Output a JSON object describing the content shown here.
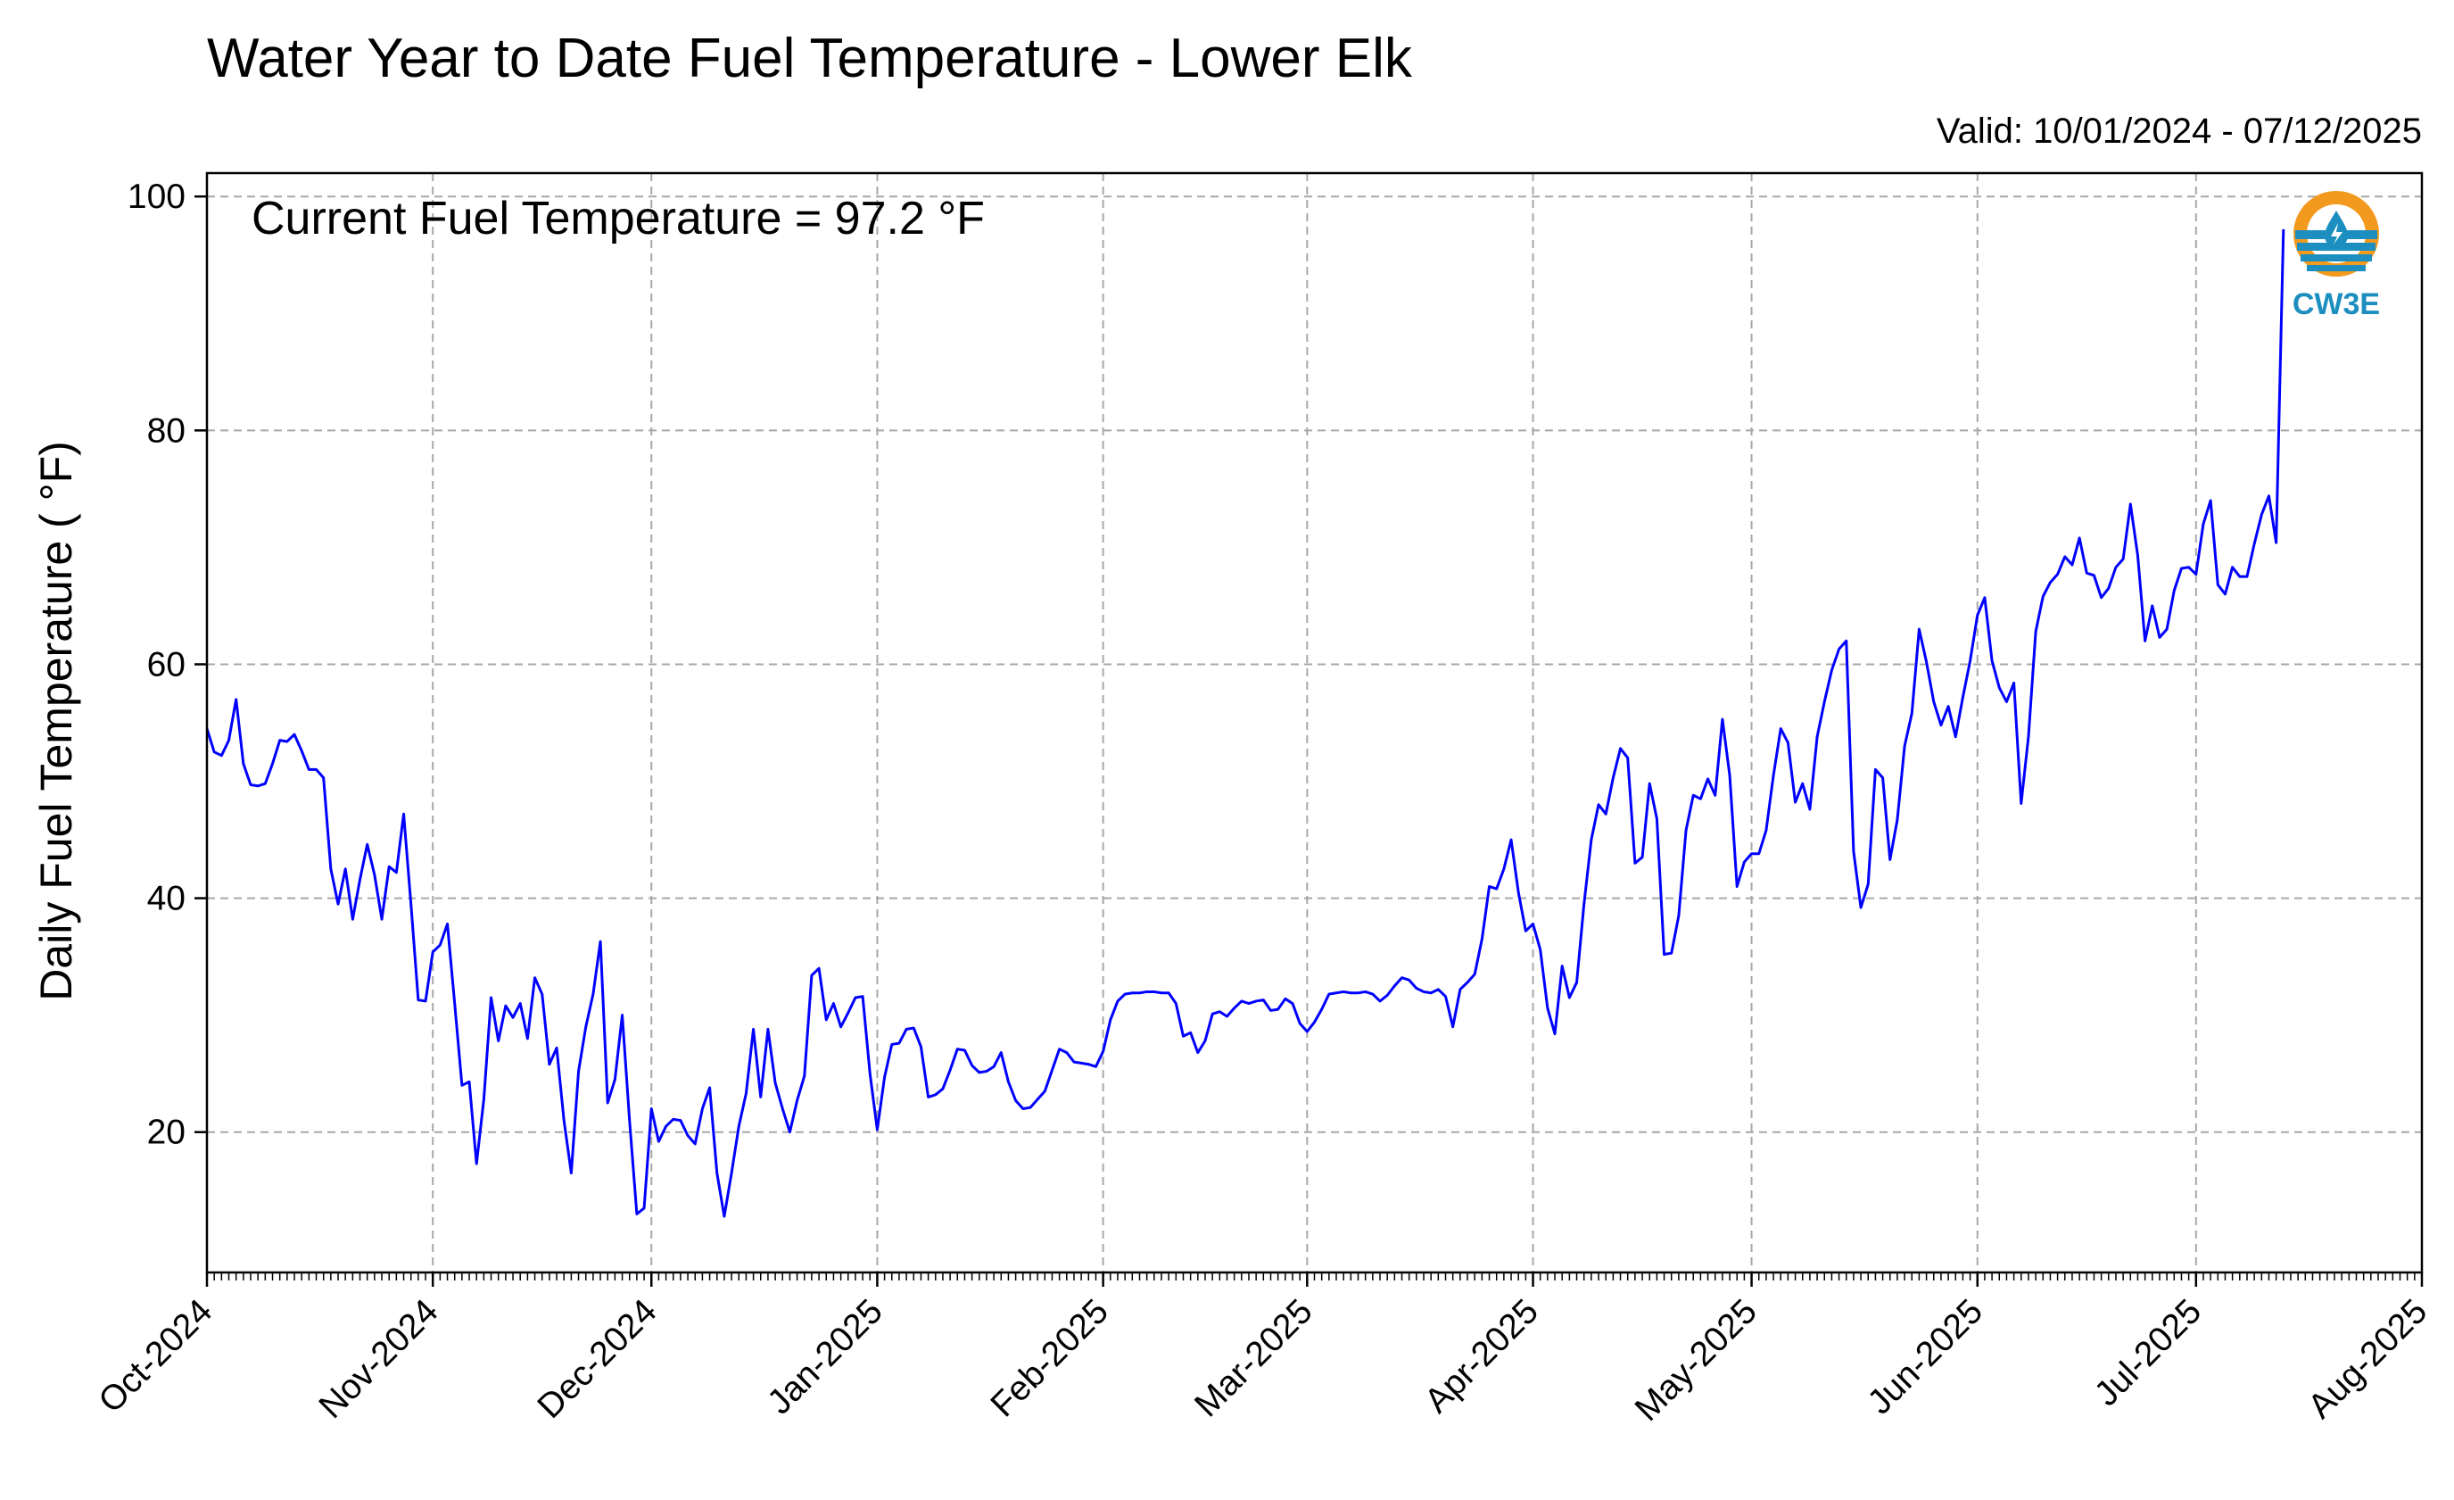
{
  "colors": {
    "series": "#0000ff",
    "grid": "#a8a8a8",
    "logo_orange": "#f39a1e",
    "logo_blue": "#1c8ec0"
  },
  "logo": {
    "text": "CW3E",
    "icon": "water-drop-logo-icon"
  },
  "chart_data": {
    "type": "line",
    "title": "Water Year to Date Fuel Temperature - Lower Elk",
    "subtitle": "Valid: 10/01/2024 - 07/12/2025",
    "ylabel": "Daily Fuel Temperature ( °F)",
    "xlabel": "",
    "annotation": "Current Fuel Temperature = 97.2 °F",
    "xlim": [
      "2024-10-01",
      "2025-08-01"
    ],
    "ylim": [
      8,
      102
    ],
    "y_ticks": [
      20,
      40,
      60,
      80,
      100
    ],
    "x_ticks": [
      {
        "date": "2024-10-01",
        "label": "Oct-2024"
      },
      {
        "date": "2024-11-01",
        "label": "Nov-2024"
      },
      {
        "date": "2024-12-01",
        "label": "Dec-2024"
      },
      {
        "date": "2025-01-01",
        "label": "Jan-2025"
      },
      {
        "date": "2025-02-01",
        "label": "Feb-2025"
      },
      {
        "date": "2025-03-01",
        "label": "Mar-2025"
      },
      {
        "date": "2025-04-01",
        "label": "Apr-2025"
      },
      {
        "date": "2025-05-01",
        "label": "May-2025"
      },
      {
        "date": "2025-06-01",
        "label": "Jun-2025"
      },
      {
        "date": "2025-07-01",
        "label": "Jul-2025"
      },
      {
        "date": "2025-08-01",
        "label": "Aug-2025"
      }
    ],
    "grid": true,
    "series": [
      {
        "start_date": "2024-10-01",
        "x_step": "1 day",
        "values": [
          54.5,
          52.5,
          52.2,
          53.5,
          57.0,
          51.5,
          49.7,
          49.6,
          49.8,
          51.5,
          53.5,
          53.4,
          54.0,
          52.6,
          51.0,
          51.0,
          50.3,
          42.5,
          39.5,
          42.5,
          38.2,
          41.6,
          44.6,
          42.0,
          38.2,
          42.7,
          42.2,
          47.2,
          39.5,
          31.3,
          31.2,
          35.4,
          36.0,
          37.8,
          31.0,
          24.0,
          24.3,
          17.3,
          22.8,
          31.5,
          27.8,
          30.8,
          29.8,
          31.0,
          28.0,
          33.2,
          31.8,
          25.8,
          27.2,
          21.0,
          16.5,
          25.2,
          29.0,
          31.8,
          36.3,
          22.5,
          24.5,
          30.0,
          21.0,
          13.0,
          13.5,
          22.0,
          19.2,
          20.5,
          21.1,
          21.0,
          19.7,
          19.0,
          22.0,
          23.8,
          16.5,
          12.8,
          16.5,
          20.5,
          23.3,
          28.8,
          23.0,
          28.8,
          24.2,
          22.0,
          20.0,
          22.7,
          24.8,
          33.4,
          34.0,
          29.6,
          31.0,
          29.0,
          30.2,
          31.5,
          31.6,
          25.0,
          20.2,
          24.7,
          27.5,
          27.6,
          28.8,
          28.9,
          27.3,
          23.0,
          23.2,
          23.7,
          25.3,
          27.1,
          27.0,
          25.7,
          25.1,
          25.2,
          25.6,
          26.8,
          24.3,
          22.7,
          22.0,
          22.1,
          22.8,
          23.5,
          25.3,
          27.1,
          26.8,
          26.0,
          25.9,
          25.8,
          25.6,
          26.9,
          29.6,
          31.2,
          31.8,
          31.9,
          31.9,
          32.0,
          32.0,
          31.9,
          31.9,
          31.0,
          28.2,
          28.5,
          26.8,
          27.8,
          30.1,
          30.3,
          29.9,
          30.6,
          31.2,
          31.0,
          31.2,
          31.3,
          30.4,
          30.5,
          31.4,
          31.0,
          29.3,
          28.6,
          29.4,
          30.5,
          31.8,
          31.9,
          32.0,
          31.9,
          31.9,
          32.0,
          31.8,
          31.2,
          31.7,
          32.5,
          33.2,
          33.0,
          32.3,
          32.0,
          31.9,
          32.2,
          31.6,
          29.0,
          32.2,
          32.8,
          33.5,
          36.5,
          41.0,
          40.8,
          42.5,
          45.0,
          40.5,
          37.2,
          37.8,
          35.6,
          30.6,
          28.4,
          34.2,
          31.5,
          32.8,
          39.5,
          45.0,
          48.0,
          47.2,
          50.3,
          52.8,
          52.0,
          43.0,
          43.5,
          49.8,
          46.8,
          35.2,
          35.3,
          38.5,
          45.8,
          48.8,
          48.5,
          50.2,
          48.8,
          55.3,
          50.5,
          41.0,
          43.1,
          43.8,
          43.8,
          45.8,
          50.5,
          54.5,
          53.3,
          48.2,
          49.8,
          47.6,
          53.8,
          56.8,
          59.5,
          61.3,
          62.0,
          44.0,
          39.2,
          41.2,
          51.0,
          50.3,
          43.3,
          46.7,
          53.0,
          55.8,
          63.0,
          60.2,
          56.8,
          54.8,
          56.4,
          53.8,
          57.2,
          60.3,
          64.2,
          65.7,
          60.3,
          58.0,
          56.8,
          58.4,
          48.1,
          53.8,
          62.8,
          65.8,
          67.0,
          67.7,
          69.2,
          68.5,
          70.8,
          67.8,
          67.6,
          65.7,
          66.5,
          68.3,
          69.0,
          73.7,
          69.3,
          62.0,
          65.0,
          62.3,
          63.0,
          66.3,
          68.2,
          68.3,
          67.7,
          72.0,
          74.0,
          66.8,
          66.0,
          68.3,
          67.5,
          67.5,
          70.3,
          72.8,
          74.4,
          70.4,
          97.2
        ]
      }
    ]
  }
}
